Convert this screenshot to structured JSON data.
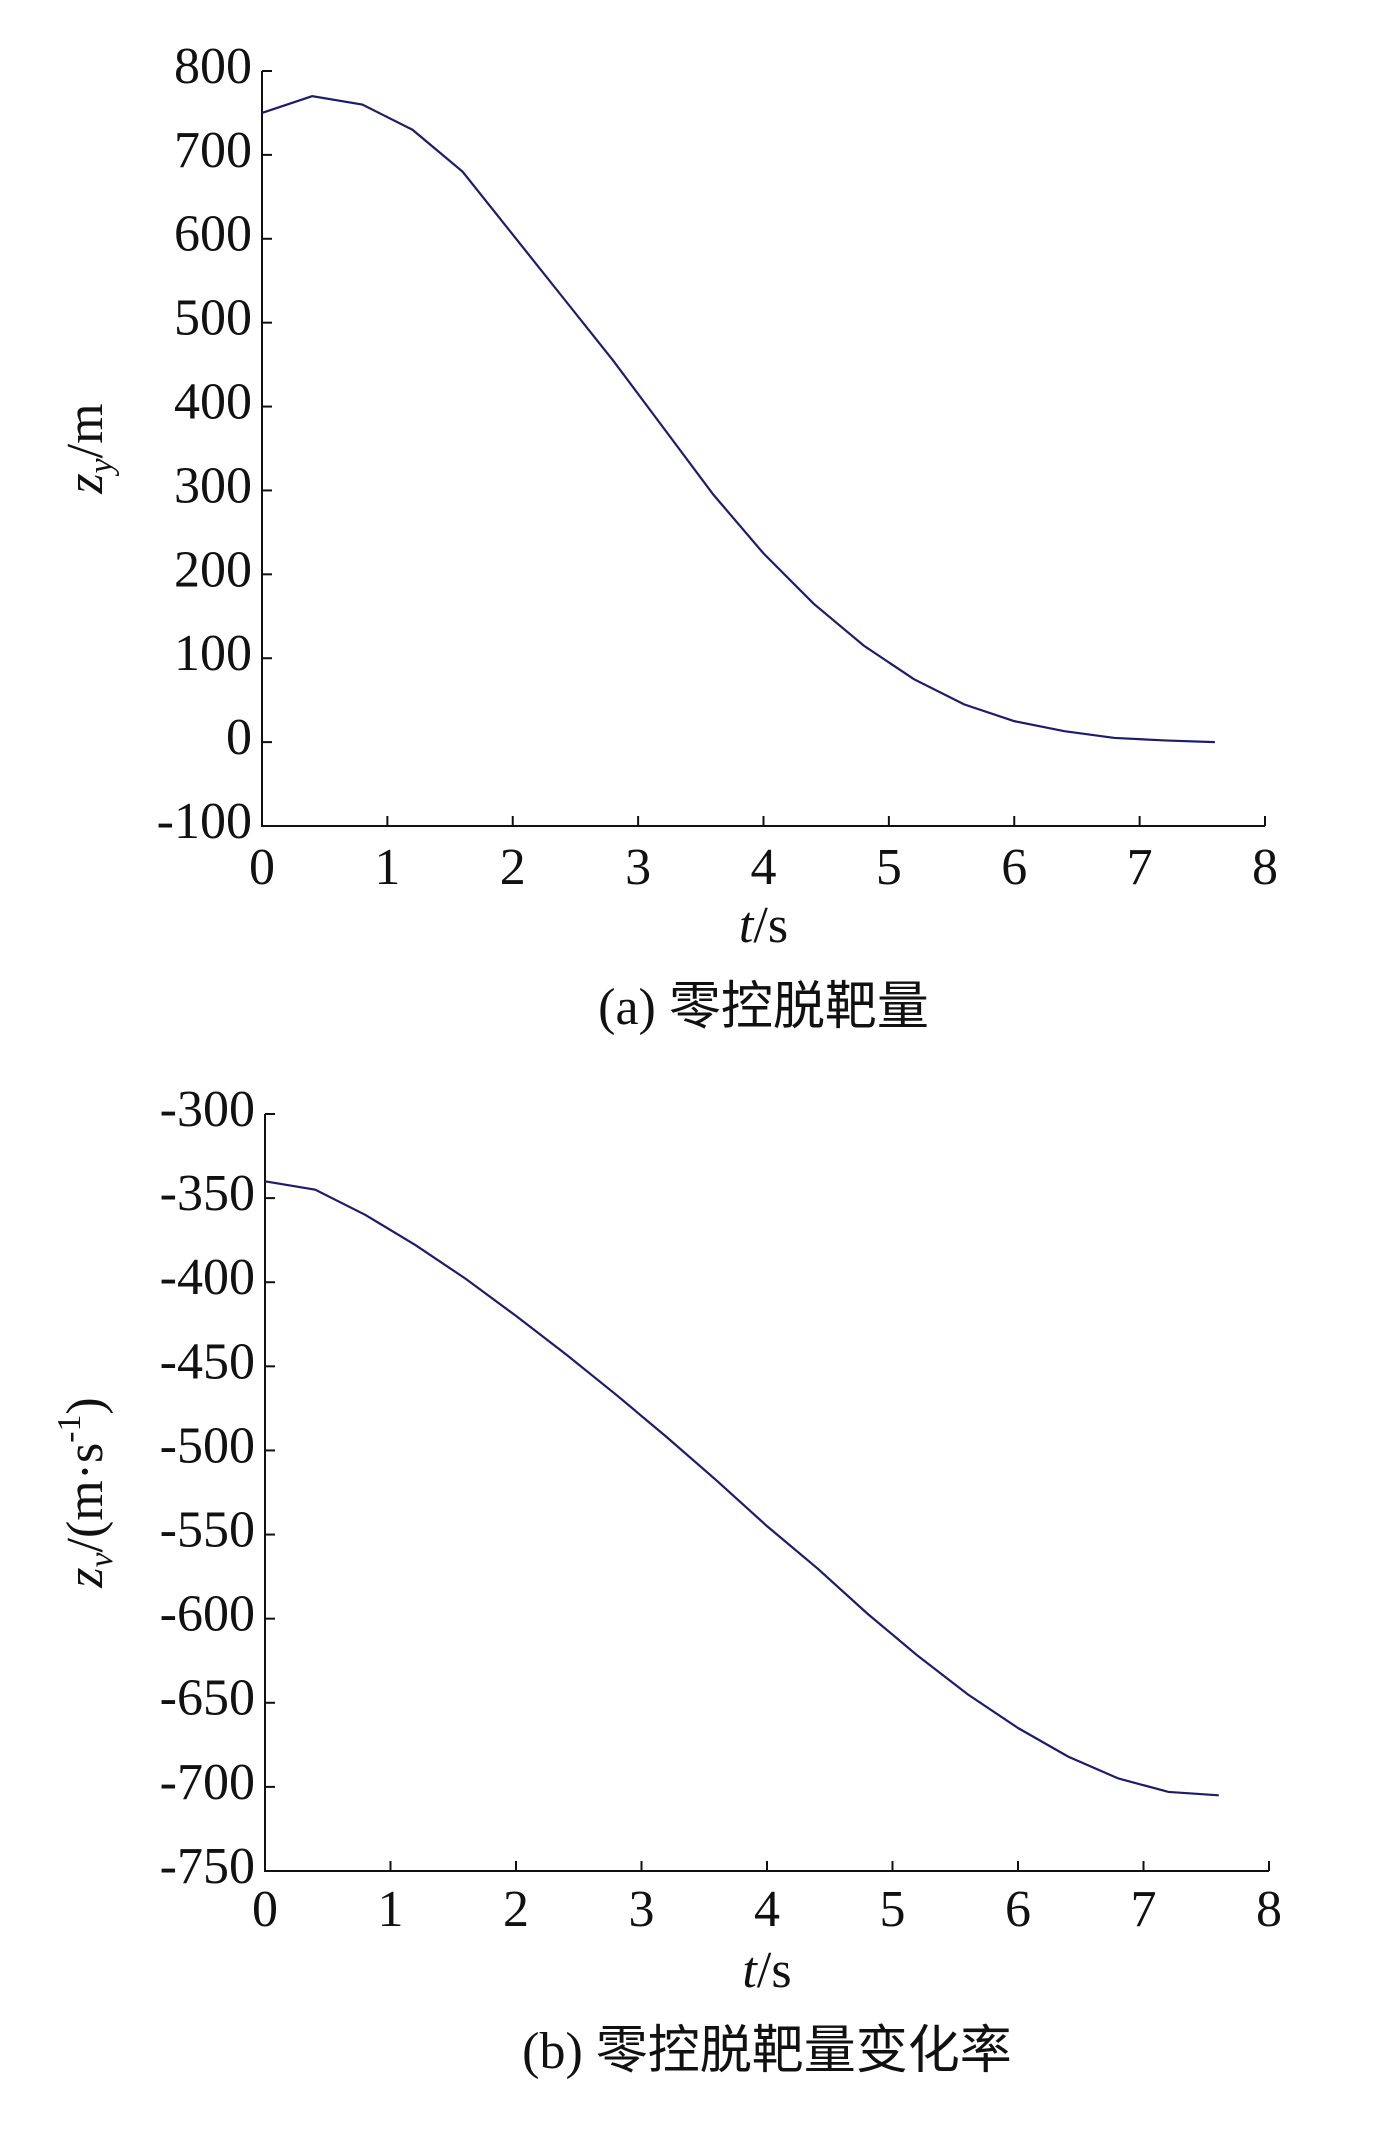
{
  "chart_data": [
    {
      "type": "line",
      "title": "(a) 零控脱靶量",
      "xlabel": [
        "t",
        "/s"
      ],
      "xlabel_style": [
        "italic",
        "normal"
      ],
      "ylabel": [
        "z",
        "y",
        "/m"
      ],
      "ylabel_style": [
        "italic",
        "sub-italic",
        "normal"
      ],
      "x": [
        0,
        0.4,
        0.8,
        1.2,
        1.6,
        2.0,
        2.4,
        2.8,
        3.2,
        3.6,
        4.0,
        4.4,
        4.8,
        5.2,
        5.6,
        6.0,
        6.4,
        6.8,
        7.2,
        7.6
      ],
      "series": [
        {
          "color": "#1c1c6e",
          "values": [
            750,
            770,
            760,
            730,
            680,
            605,
            530,
            455,
            375,
            295,
            225,
            165,
            115,
            75,
            45,
            25,
            13,
            5,
            2,
            0
          ]
        }
      ],
      "xlim": [
        0,
        8
      ],
      "xticks": [
        0,
        1,
        2,
        3,
        4,
        5,
        6,
        7,
        8
      ],
      "ylim": [
        -100,
        800
      ],
      "yticks": [
        -100,
        0,
        100,
        200,
        300,
        400,
        500,
        600,
        700,
        800
      ],
      "grid": false
    },
    {
      "type": "line",
      "title": "(b) 零控脱靶量变化率",
      "xlabel": [
        "t",
        "/s"
      ],
      "xlabel_style": [
        "italic",
        "normal"
      ],
      "ylabel": [
        "z",
        "v",
        "/(m·s",
        "-1",
        ")"
      ],
      "ylabel_style": [
        "italic",
        "sub-italic",
        "normal",
        "sup",
        "normal"
      ],
      "x": [
        0,
        0.4,
        0.8,
        1.2,
        1.6,
        2.0,
        2.4,
        2.8,
        3.2,
        3.6,
        4.0,
        4.4,
        4.8,
        5.2,
        5.6,
        6.0,
        6.4,
        6.8,
        7.2,
        7.6
      ],
      "series": [
        {
          "color": "#1c1c6e",
          "values": [
            -340,
            -345,
            -360,
            -378,
            -398,
            -420,
            -443,
            -467,
            -492,
            -518,
            -545,
            -570,
            -597,
            -622,
            -645,
            -665,
            -682,
            -695,
            -703,
            -705
          ]
        }
      ],
      "xlim": [
        0,
        8
      ],
      "xticks": [
        0,
        1,
        2,
        3,
        4,
        5,
        6,
        7,
        8
      ],
      "ylim": [
        -750,
        -300
      ],
      "yticks": [
        -750,
        -700,
        -650,
        -600,
        -550,
        -500,
        -450,
        -400,
        -350,
        -300
      ],
      "grid": false
    }
  ]
}
